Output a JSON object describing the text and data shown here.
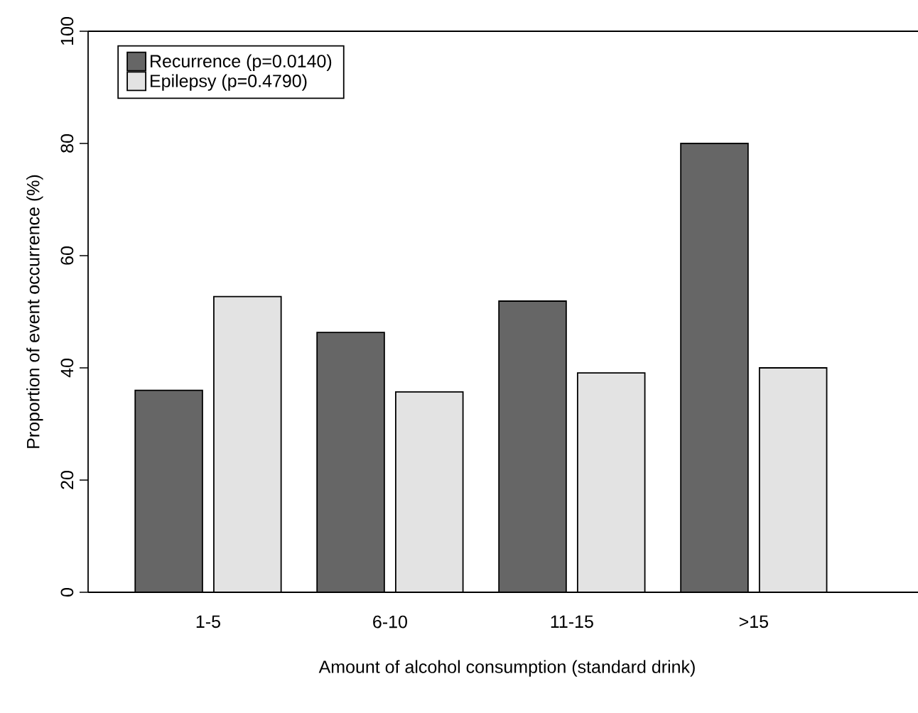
{
  "chart_data": {
    "type": "bar",
    "categories": [
      "1-5",
      "6-10",
      "11-15",
      ">15"
    ],
    "series": [
      {
        "name": "Recurrence (p=0.0140)",
        "color": "#666666",
        "values": [
          36.0,
          46.3,
          51.9,
          80.0
        ]
      },
      {
        "name": "Epilepsy (p=0.4790)",
        "color": "#e3e3e3",
        "values": [
          52.7,
          35.7,
          39.1,
          40.0
        ]
      }
    ],
    "xlabel": "Amount of alcohol consumption (standard drink)",
    "ylabel": "Proportion of event occurrence (%)",
    "ylim": [
      0,
      100
    ],
    "yticks": [
      0,
      20,
      40,
      60,
      80,
      100
    ],
    "legend": "top left"
  }
}
